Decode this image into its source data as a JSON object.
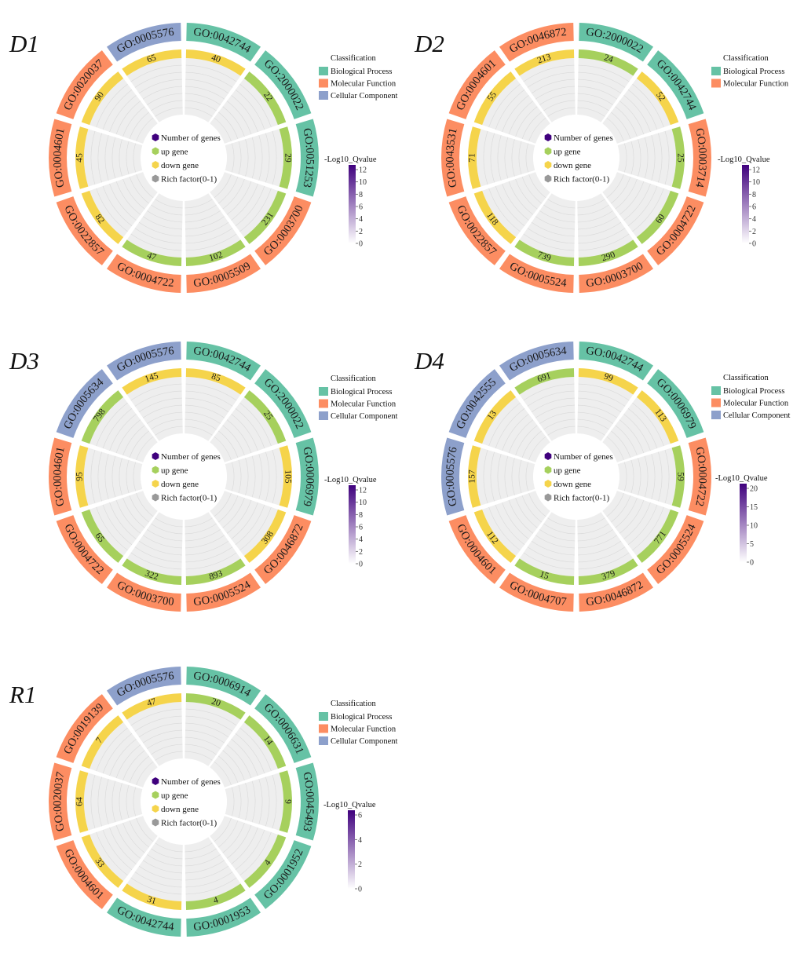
{
  "colors": {
    "Biological Process": "#66c2a5",
    "Molecular Function": "#fc8d62",
    "Cellular Component": "#8da0cb",
    "up": "#a6d05d",
    "down": "#f5d44b",
    "inner_bg": "#eeeeee",
    "grid": "#d9d9d9",
    "number_icon": "#3f007d",
    "rich_icon": "#999999"
  },
  "center_labels": {
    "number": "Number of genes",
    "up": "up gene",
    "down": "down gene",
    "rich": "Rich factor(0-1)"
  },
  "legend": {
    "title": "Classification"
  },
  "colorbar": {
    "title": "-Log10_Qvalue",
    "colors": [
      "#ffffff",
      "#3f007d"
    ]
  },
  "chart_data": [
    {
      "type": "circular",
      "panel": "D1",
      "terms": [
        "GO:0042744",
        "GO:2000022",
        "GO:0051253",
        "GO:0003700",
        "GO:0005509",
        "GO:0004722",
        "GO:0022857",
        "GO:0004601",
        "GO:0020037",
        "GO:0005576"
      ],
      "classes": [
        "Biological Process",
        "Biological Process",
        "Biological Process",
        "Molecular Function",
        "Molecular Function",
        "Molecular Function",
        "Molecular Function",
        "Molecular Function",
        "Molecular Function",
        "Cellular Component"
      ],
      "gene_counts": [
        40,
        22,
        29,
        231,
        102,
        47,
        82,
        45,
        90,
        65
      ],
      "direction": [
        "down",
        "up",
        "up",
        "up",
        "up",
        "up",
        "down",
        "down",
        "down",
        "down"
      ],
      "legend_entries": [
        "Biological Process",
        "Molecular Function",
        "Cellular Component"
      ],
      "colorbar_ticks": [
        12,
        10,
        8,
        6,
        4,
        2,
        0
      ]
    },
    {
      "type": "circular",
      "panel": "D2",
      "terms": [
        "GO:2000022",
        "GO:0042744",
        "GO:0003714",
        "GO:0004722",
        "GO:0003700",
        "GO:0005524",
        "GO:0022857",
        "GO:0043531",
        "GO:0004601",
        "GO:0046872"
      ],
      "classes": [
        "Biological Process",
        "Biological Process",
        "Molecular Function",
        "Molecular Function",
        "Molecular Function",
        "Molecular Function",
        "Molecular Function",
        "Molecular Function",
        "Molecular Function",
        "Molecular Function"
      ],
      "gene_counts": [
        24,
        52,
        25,
        60,
        290,
        739,
        118,
        71,
        55,
        213
      ],
      "direction": [
        "up",
        "down",
        "up",
        "up",
        "up",
        "up",
        "down",
        "down",
        "down",
        "down"
      ],
      "legend_entries": [
        "Biological Process",
        "Molecular Function"
      ],
      "colorbar_ticks": [
        12,
        10,
        8,
        6,
        4,
        2,
        0
      ]
    },
    {
      "type": "circular",
      "panel": "D3",
      "terms": [
        "GO:0042744",
        "GO:2000022",
        "GO:0006979",
        "GO:0046872",
        "GO:0005524",
        "GO:0003700",
        "GO:0004722",
        "GO:0004601",
        "GO:0005634",
        "GO:0005576"
      ],
      "classes": [
        "Biological Process",
        "Biological Process",
        "Biological Process",
        "Molecular Function",
        "Molecular Function",
        "Molecular Function",
        "Molecular Function",
        "Molecular Function",
        "Cellular Component",
        "Cellular Component"
      ],
      "gene_counts": [
        85,
        25,
        105,
        308,
        893,
        322,
        65,
        95,
        798,
        145
      ],
      "direction": [
        "down",
        "up",
        "down",
        "down",
        "up",
        "up",
        "up",
        "down",
        "up",
        "down"
      ],
      "legend_entries": [
        "Biological Process",
        "Molecular Function",
        "Cellular Component"
      ],
      "colorbar_ticks": [
        12,
        10,
        8,
        6,
        4,
        2,
        0
      ]
    },
    {
      "type": "circular",
      "panel": "D4",
      "terms": [
        "GO:0042744",
        "GO:0006979",
        "GO:0004722",
        "GO:0005524",
        "GO:0046872",
        "GO:0004707",
        "GO:0004601",
        "GO:0005576",
        "GO:0042555",
        "GO:0005634"
      ],
      "classes": [
        "Biological Process",
        "Biological Process",
        "Molecular Function",
        "Molecular Function",
        "Molecular Function",
        "Molecular Function",
        "Molecular Function",
        "Cellular Component",
        "Cellular Component",
        "Cellular Component"
      ],
      "gene_counts": [
        99,
        113,
        59,
        771,
        379,
        15,
        112,
        157,
        13,
        691
      ],
      "direction": [
        "down",
        "down",
        "up",
        "up",
        "up",
        "up",
        "down",
        "down",
        "down",
        "up"
      ],
      "legend_entries": [
        "Biological Process",
        "Molecular Function",
        "Cellular Component"
      ],
      "colorbar_ticks": [
        20,
        15,
        10,
        5,
        0
      ]
    },
    {
      "type": "circular",
      "panel": "R1",
      "terms": [
        "GO:0006914",
        "GO:0006631",
        "GO:0045493",
        "GO:0001952",
        "GO:0001953",
        "GO:0042744",
        "GO:0004601",
        "GO:0020037",
        "GO:0019139",
        "GO:0005576"
      ],
      "classes": [
        "Biological Process",
        "Biological Process",
        "Biological Process",
        "Biological Process",
        "Biological Process",
        "Biological Process",
        "Molecular Function",
        "Molecular Function",
        "Molecular Function",
        "Cellular Component"
      ],
      "gene_counts": [
        20,
        14,
        9,
        4,
        4,
        31,
        33,
        64,
        7,
        47
      ],
      "direction": [
        "up",
        "up",
        "up",
        "up",
        "up",
        "down",
        "down",
        "down",
        "down",
        "down"
      ],
      "legend_entries": [
        "Biological Process",
        "Molecular Function",
        "Cellular Component"
      ],
      "colorbar_ticks": [
        6,
        4,
        2,
        0
      ]
    }
  ]
}
